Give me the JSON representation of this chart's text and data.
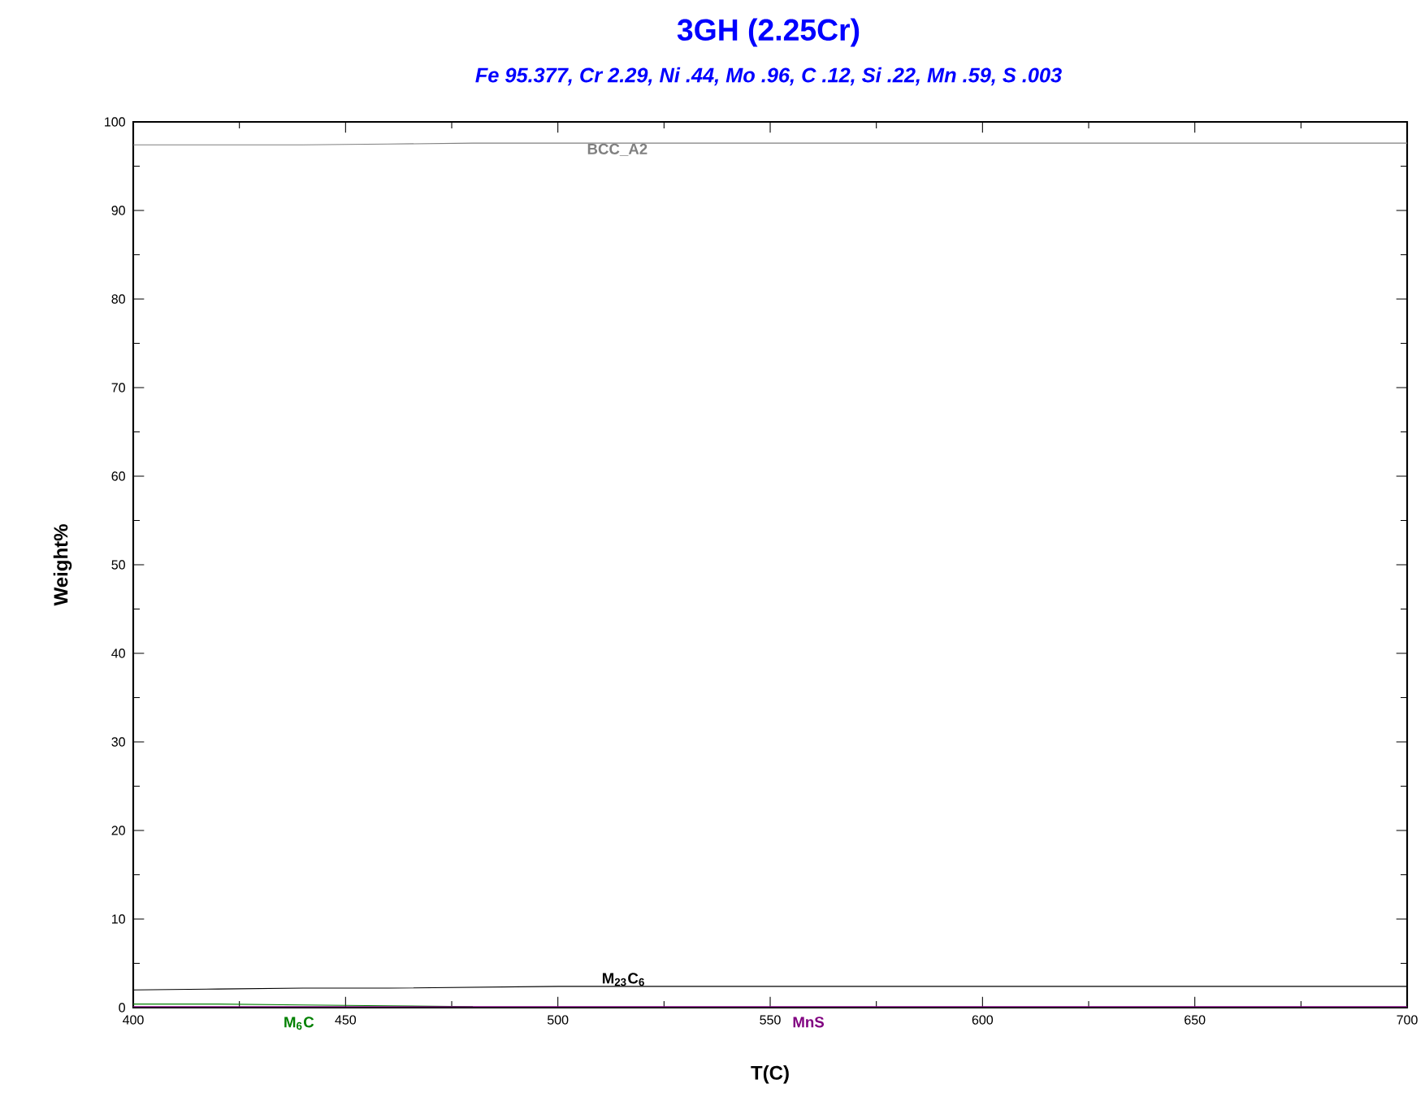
{
  "chart_data": {
    "type": "line",
    "title": "3GH (2.25Cr)",
    "subtitle": "Fe 95.377, Cr 2.29, Ni .44, Mo .96, C .12, Si .22, Mn .59, S .003",
    "xlabel": "T(C)",
    "ylabel": "Weight%",
    "x": [
      400,
      420,
      440,
      460,
      480,
      500,
      520,
      550,
      600,
      650,
      700
    ],
    "series": [
      {
        "name": "BCC_A2",
        "color": "#808080",
        "values": [
          97.4,
          97.4,
          97.4,
          97.5,
          97.6,
          97.6,
          97.6,
          97.6,
          97.6,
          97.6,
          97.6
        ]
      },
      {
        "name": "M$_{23}$C$_{6}$",
        "color": "#000000",
        "values": [
          2.0,
          2.1,
          2.2,
          2.2,
          2.3,
          2.4,
          2.4,
          2.4,
          2.4,
          2.4,
          2.4
        ]
      },
      {
        "name": "M$_{6}$C",
        "color": "#008000",
        "values": [
          0.4,
          0.4,
          0.3,
          0.2,
          0.1,
          null,
          null,
          null,
          null,
          null,
          null
        ]
      },
      {
        "name": "MnS",
        "color": "#800080",
        "values": [
          0.1,
          0.1,
          0.1,
          0.1,
          0.1,
          0.1,
          0.1,
          0.1,
          0.1,
          0.1,
          0.1
        ]
      }
    ],
    "xlim": [
      400,
      700
    ],
    "ylim": [
      0,
      100
    ],
    "xticks": [
      400,
      450,
      500,
      550,
      600,
      650,
      700
    ],
    "yticks": [
      0,
      10,
      20,
      30,
      40,
      50,
      60,
      70,
      80,
      90,
      100
    ],
    "grid": false,
    "marker": "none",
    "line_style": "solid"
  }
}
